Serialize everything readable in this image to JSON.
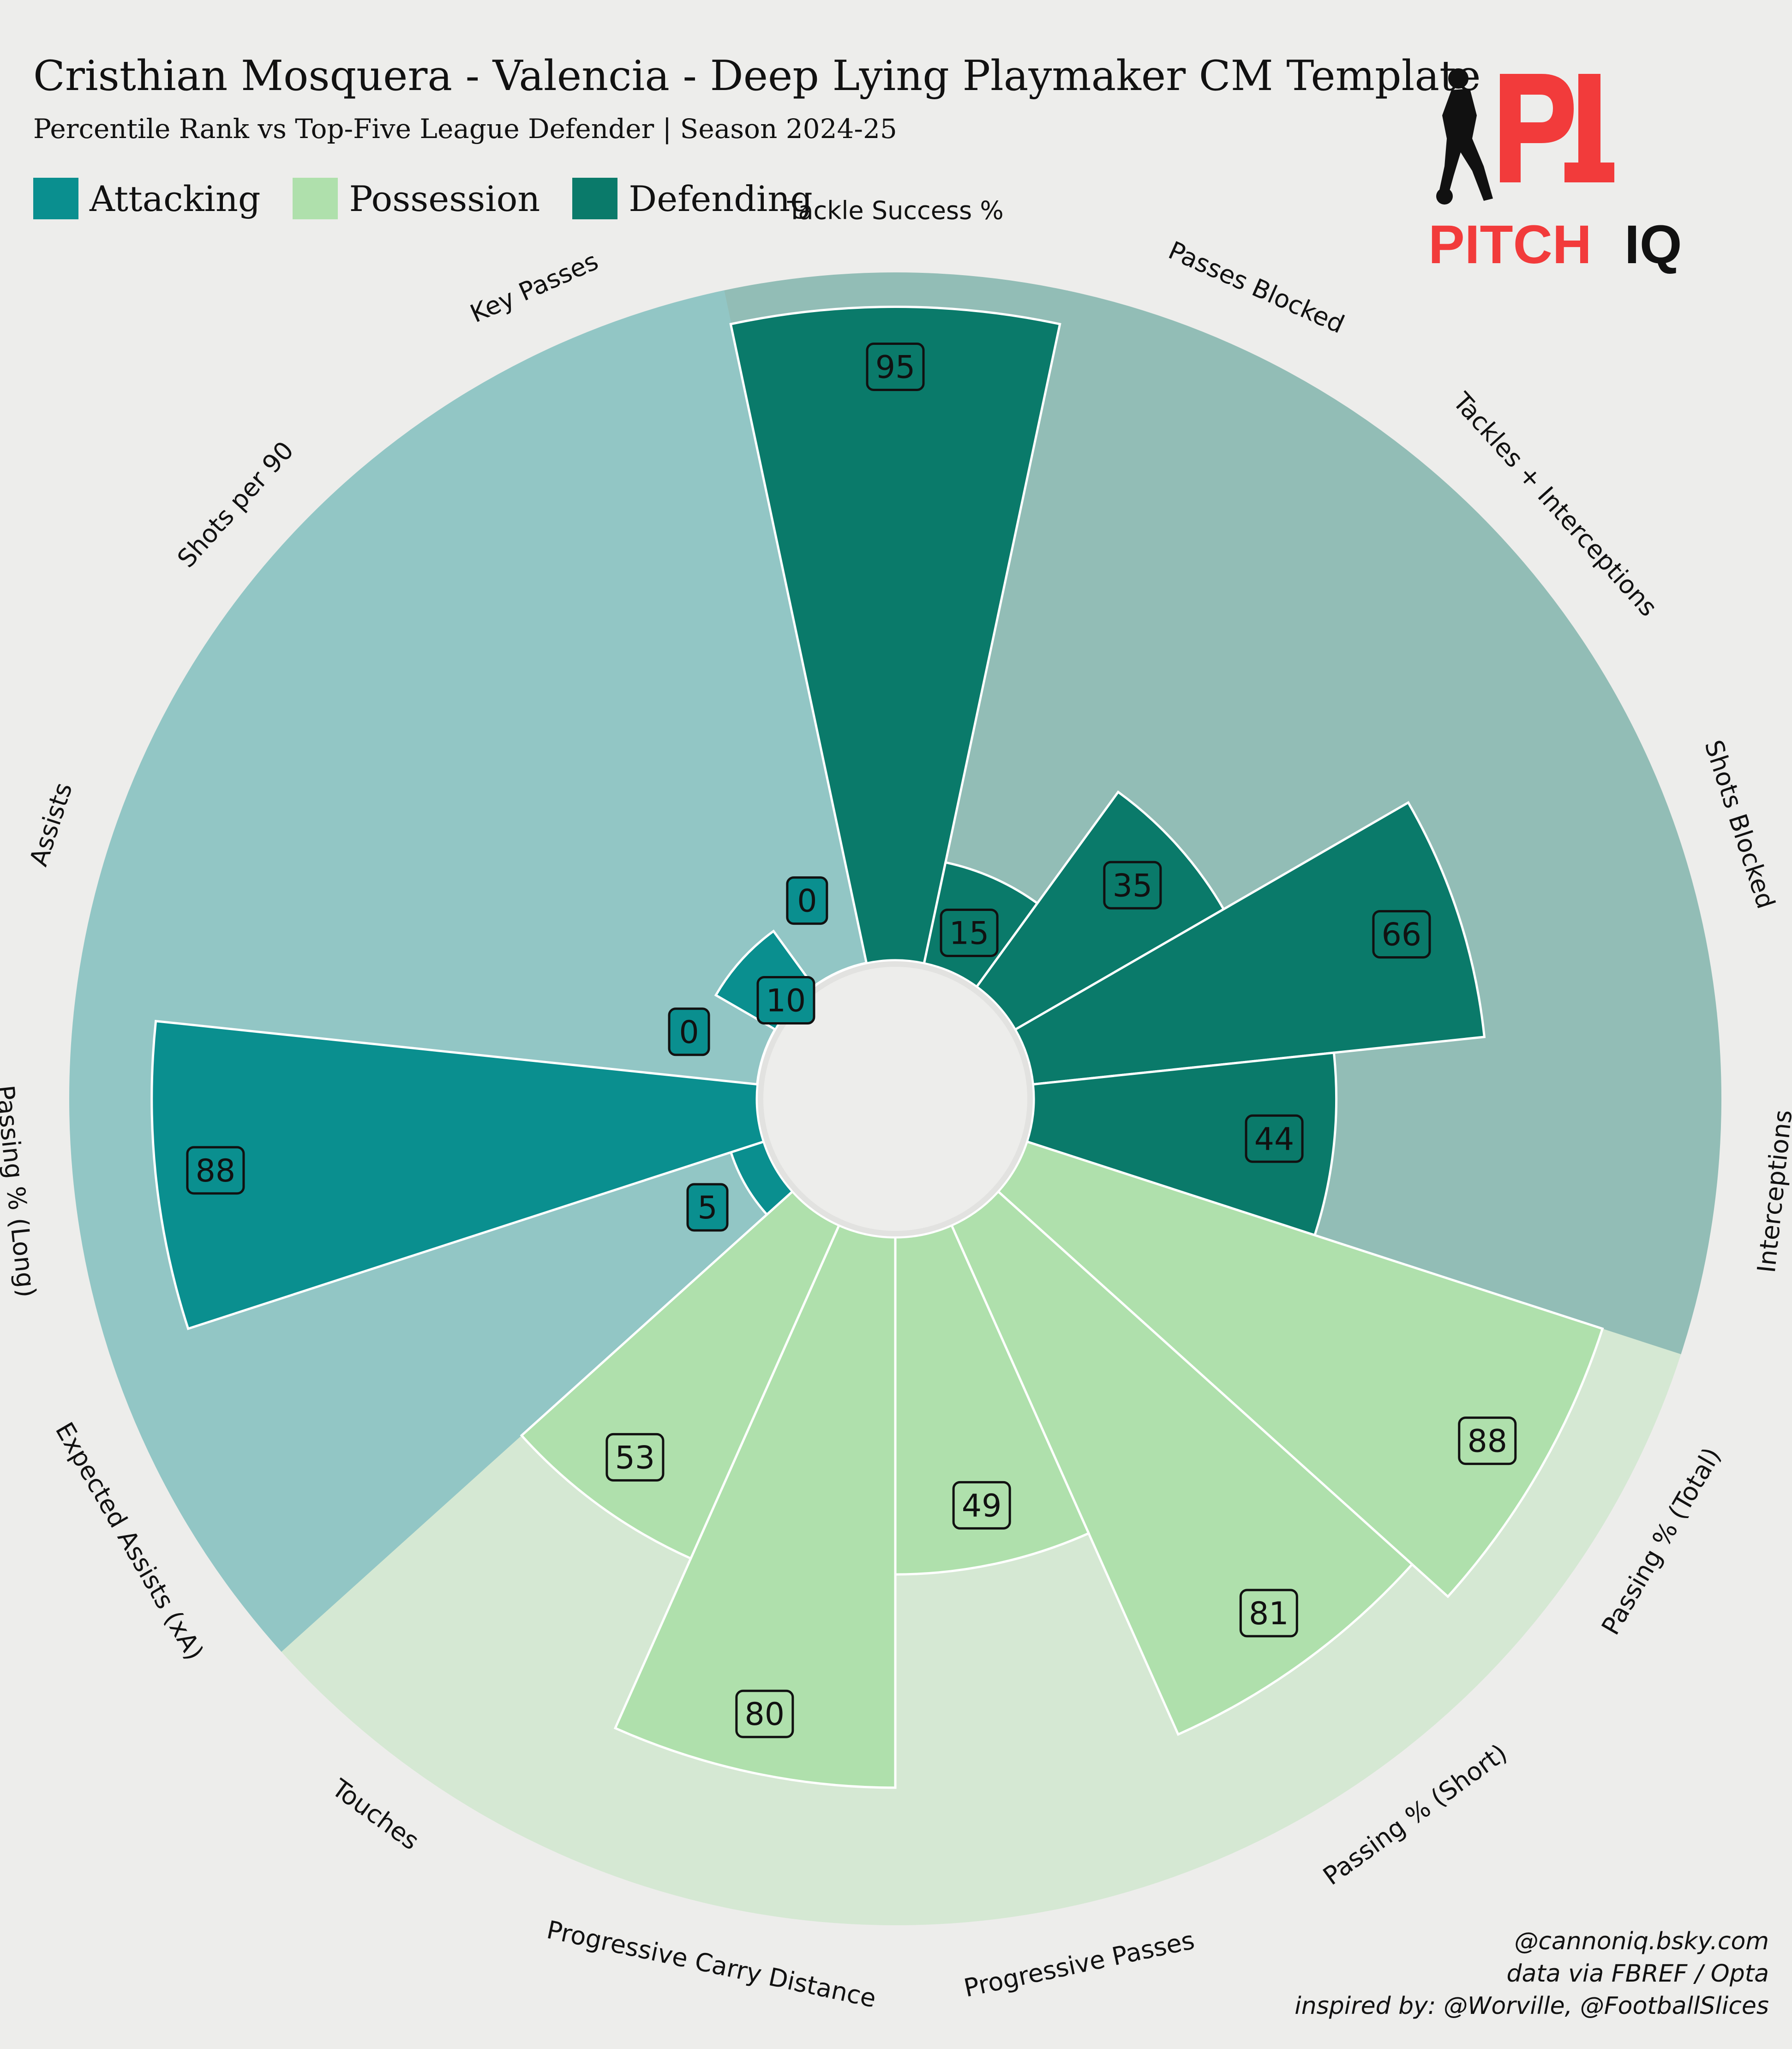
{
  "title": "Cristhian Mosquera - Valencia - Deep Lying Playmaker CM Template",
  "subtitle": "Percentile Rank vs Top-Five League Defender | Season 2024-25",
  "legend": [
    {
      "label": "Attacking",
      "color": "#0a8f8f"
    },
    {
      "label": "Possession",
      "color": "#afe0ac"
    },
    {
      "label": "Defending",
      "color": "#0a7a6a"
    }
  ],
  "logo": {
    "text_left": "PITCH",
    "text_right": "IQ",
    "mark": "PI",
    "icon": "footballer-silhouette-icon",
    "color": "#f04040"
  },
  "credits": {
    "line1": "@cannoniq.bsky.com",
    "line2": "data via FBREF / Opta",
    "line3": "inspired by: @Worville, @FootballSlices"
  },
  "chart_data": {
    "type": "radar-bar",
    "ylim": [
      0,
      100
    ],
    "categories": [
      "Tackle Success %",
      "Passes Blocked",
      "Tackles + Interceptions",
      "Shots Blocked",
      "Interceptions",
      "Passing % (Total)",
      "Passing % (Short)",
      "Progressive Passes",
      "Progressive Carry Distance",
      "Touches",
      "Expected Assists (xA)",
      "Passing % (Long)",
      "Assists",
      "Shots per 90",
      "Key Passes"
    ],
    "values": [
      95,
      15,
      35,
      66,
      44,
      88,
      81,
      49,
      80,
      53,
      5,
      88,
      0,
      10,
      0
    ],
    "groups": [
      "Defending",
      "Defending",
      "Defending",
      "Defending",
      "Defending",
      "Possession",
      "Possession",
      "Possession",
      "Possession",
      "Possession",
      "Attacking",
      "Attacking",
      "Attacking",
      "Attacking",
      "Attacking"
    ],
    "colors": {
      "Attacking": {
        "bar": "#0a8f8f",
        "background": "#92c6c5"
      },
      "Possession": {
        "bar": "#afe0ac",
        "background": "#d5e8d3"
      },
      "Defending": {
        "bar": "#0a7a6a",
        "background": "#92bdb6"
      }
    },
    "grid": false,
    "legend_position": "top-left"
  }
}
